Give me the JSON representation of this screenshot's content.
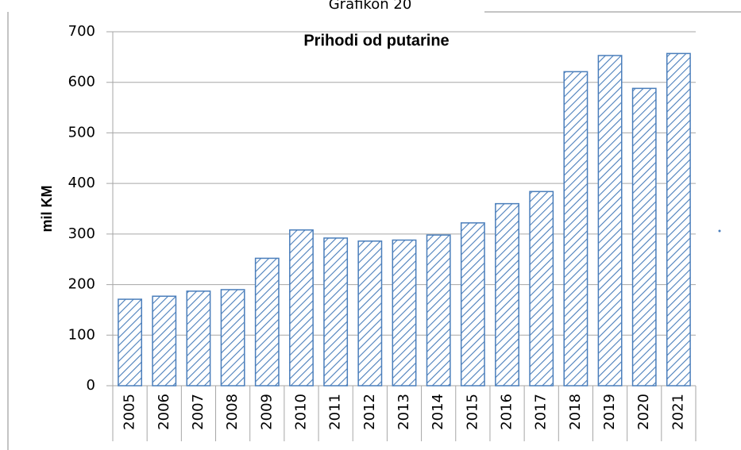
{
  "chart_data": {
    "type": "bar",
    "header": "Grafikon 20",
    "title": "Prihodi od putarine",
    "y_label": "mil KM",
    "categories": [
      "2005",
      "2006",
      "2007",
      "2008",
      "2009",
      "2010",
      "2011",
      "2012",
      "2013",
      "2014",
      "2015",
      "2016",
      "2017",
      "2018",
      "2019",
      "2020",
      "2021"
    ],
    "values": [
      171,
      177,
      187,
      190,
      252,
      308,
      292,
      286,
      288,
      298,
      322,
      360,
      384,
      621,
      653,
      588,
      657
    ],
    "color": "#4a7ebb",
    "hatch": true,
    "ylim": [
      0,
      700
    ],
    "yticks": [
      0,
      100,
      200,
      300,
      400,
      500,
      600,
      700
    ],
    "grid": true
  }
}
